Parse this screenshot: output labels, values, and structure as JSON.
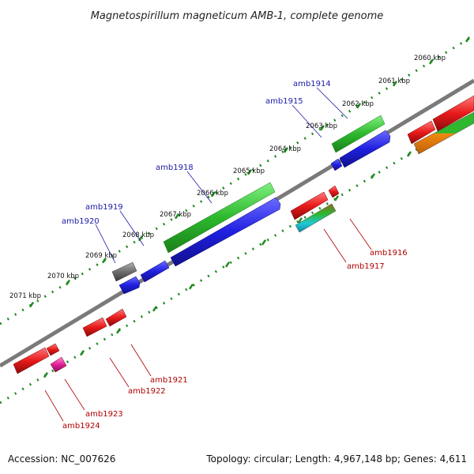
{
  "title": "Magnetospirillum magneticum AMB-1, complete genome",
  "footer": {
    "accession": "Accession: NC_007626",
    "topology": "Topology: circular; Length: 4,967,148 bp; Genes: 4,611"
  },
  "kbp_labels": [
    "2060 kbp",
    "2061 kbp",
    "2062 kbp",
    "2063 kbp",
    "2064 kbp",
    "2065 kbp",
    "2066 kbp",
    "2067 kbp",
    "2068 kbp",
    "2069 kbp",
    "2070 kbp",
    "2071 kbp"
  ],
  "genes_forward": [
    {
      "id": "amb1914",
      "color": "#2db82d"
    },
    {
      "id": "amb1915",
      "color": "#1f1fe0"
    },
    {
      "id": "amb1918",
      "color": "#2db82d"
    },
    {
      "id": "amb1919",
      "color": "#1f1fe0"
    },
    {
      "id": "amb1920",
      "color": "#6e6e6e"
    }
  ],
  "genes_reverse": [
    {
      "id": "amb1916",
      "color": "#e81a1a"
    },
    {
      "id": "amb1917",
      "color": "#20c8d8"
    },
    {
      "id": "amb1921",
      "color": "#e81a1a"
    },
    {
      "id": "amb1922",
      "color": "#e81a1a"
    },
    {
      "id": "amb1923",
      "color": "#e0209a"
    },
    {
      "id": "amb1924",
      "color": "#e81a1a"
    }
  ],
  "colors": {
    "forward_label": "#1a1aa8",
    "reverse_label": "#b00000",
    "backbone": "#7a7a7a",
    "ticks": "#1f8a1f"
  }
}
